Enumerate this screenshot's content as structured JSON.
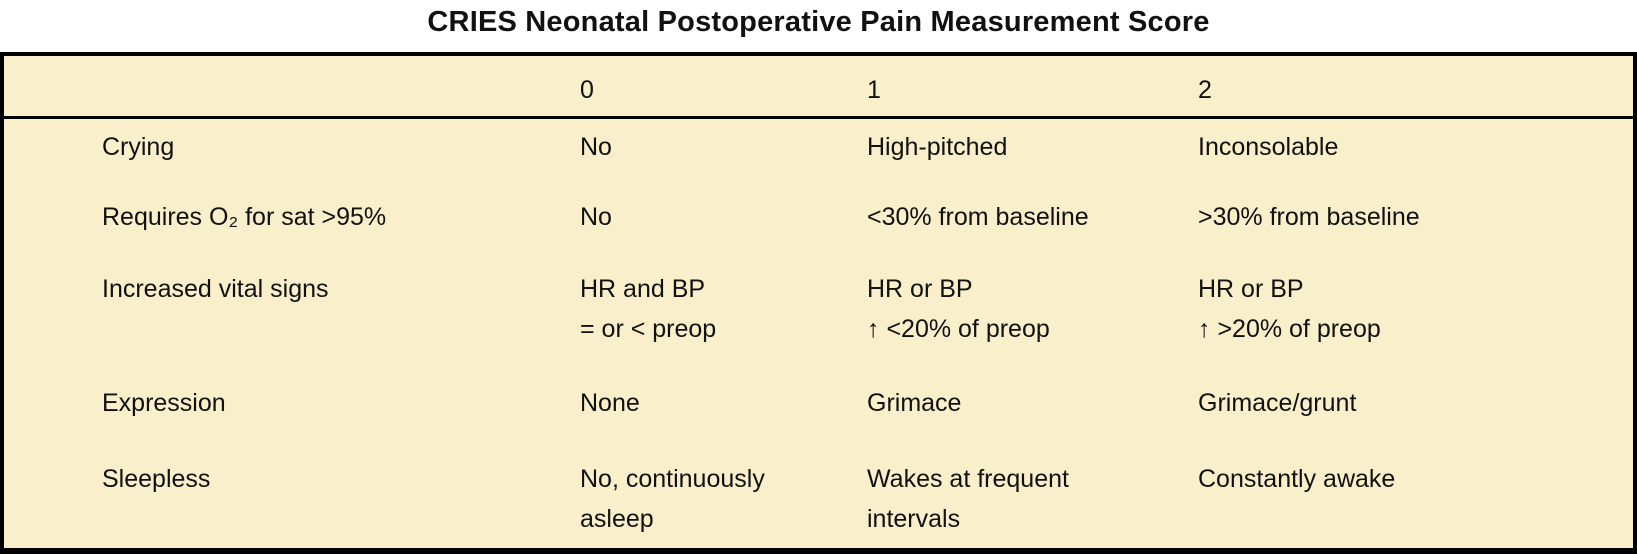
{
  "title": "CRIES Neonatal Postoperative Pain Measurement Score",
  "colors": {
    "table_bg": "#FAEFCB",
    "border": "#000000",
    "text": "#111111"
  },
  "table": {
    "columns": [
      "0",
      "1",
      "2"
    ],
    "rows": [
      {
        "label": "Crying",
        "scores": [
          "No",
          "High-pitched",
          "Inconsolable"
        ]
      },
      {
        "label": "Requires O₂ for sat >95%",
        "scores": [
          "No",
          "<30% from baseline",
          ">30% from baseline"
        ]
      },
      {
        "label": "Increased vital signs",
        "scores": [
          "HR and BP\n= or < preop",
          "HR or BP\n↑ <20% of preop",
          "HR or BP\n↑ >20% of preop"
        ]
      },
      {
        "label": "Expression",
        "scores": [
          "None",
          "Grimace",
          "Grimace/grunt"
        ]
      },
      {
        "label": "Sleepless",
        "scores": [
          "No, continuously\nasleep",
          "Wakes at frequent\nintervals",
          "Constantly awake"
        ]
      }
    ]
  },
  "chart_data": {
    "type": "table",
    "title": "CRIES Neonatal Postoperative Pain Measurement Score",
    "columns": [
      "",
      "0",
      "1",
      "2"
    ],
    "rows": [
      [
        "Crying",
        "No",
        "High-pitched",
        "Inconsolable"
      ],
      [
        "Requires O₂ for sat >95%",
        "No",
        "<30% from baseline",
        ">30% from baseline"
      ],
      [
        "Increased vital signs",
        "HR and BP = or < preop",
        "HR or BP ↑ <20% of preop",
        "HR or BP ↑ >20% of preop"
      ],
      [
        "Expression",
        "None",
        "Grimace",
        "Grimace/grunt"
      ],
      [
        "Sleepless",
        "No, continuously asleep",
        "Wakes at frequent intervals",
        "Constantly awake"
      ]
    ]
  }
}
